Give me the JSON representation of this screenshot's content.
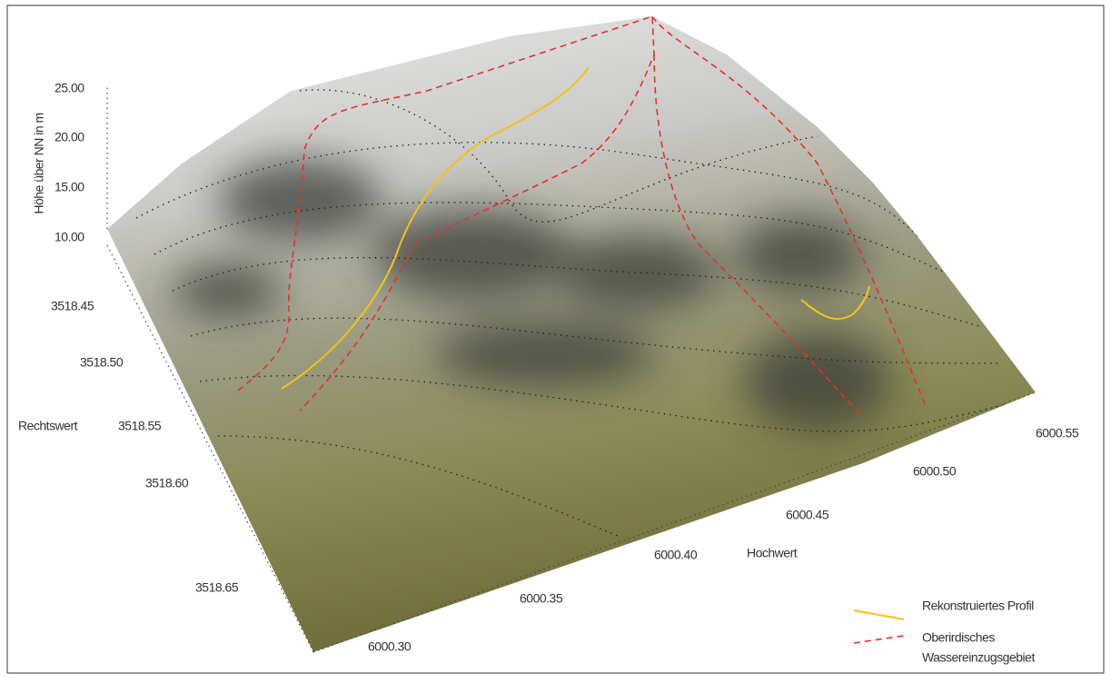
{
  "z_axis": {
    "label": "Höhe über NN in m",
    "ticks": [
      "25.00",
      "20.00",
      "15.00",
      "10.00"
    ]
  },
  "x_axis": {
    "label": "Rechtswert",
    "ticks": [
      "3518.45",
      "3518.50",
      "3518.55",
      "3518.60",
      "3518.65"
    ]
  },
  "y_axis": {
    "label": "Hochwert",
    "ticks": [
      "6000.30",
      "6000.35",
      "6000.40",
      "6000.45",
      "6000.50",
      "6000.55"
    ]
  },
  "legend": {
    "items": [
      {
        "label_lines": [
          "Rekonstruiertes Profil"
        ]
      },
      {
        "label_lines": [
          "Oberirdisches",
          "Wassereinzugsgebiet"
        ]
      }
    ]
  }
}
